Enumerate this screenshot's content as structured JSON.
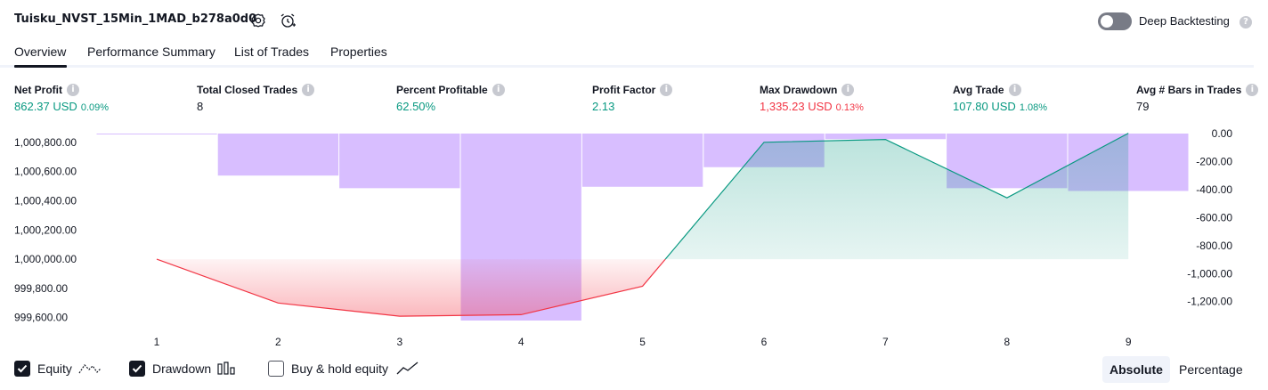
{
  "header": {
    "strategy_name": "Tuisku_NVST_15Min_1MAD_b278a0d0",
    "settings_icon": "gear-icon",
    "alert_icon": "add-alarm-icon",
    "deep_backtesting_label": "Deep Backtesting",
    "deep_backtesting_enabled": false,
    "help_icon": "question-icon"
  },
  "tabs": [
    {
      "label": "Overview",
      "active": true
    },
    {
      "label": "Performance Summary",
      "active": false
    },
    {
      "label": "List of Trades",
      "active": false
    },
    {
      "label": "Properties",
      "active": false
    }
  ],
  "metrics": [
    {
      "label": "Net Profit",
      "value": "862.37 USD",
      "percent": "0.09%",
      "tone": "green"
    },
    {
      "label": "Total Closed Trades",
      "value": "8",
      "percent": "",
      "tone": "dark"
    },
    {
      "label": "Percent Profitable",
      "value": "62.50%",
      "percent": "",
      "tone": "green"
    },
    {
      "label": "Profit Factor",
      "value": "2.13",
      "percent": "",
      "tone": "green"
    },
    {
      "label": "Max Drawdown",
      "value": "1,335.23 USD",
      "percent": "0.13%",
      "tone": "red"
    },
    {
      "label": "Avg Trade",
      "value": "107.80 USD",
      "percent": "1.08%",
      "tone": "green"
    },
    {
      "label": "Avg # Bars in Trades",
      "value": "79",
      "percent": "",
      "tone": "dark"
    }
  ],
  "chart_data": {
    "type": "line",
    "x": [
      1,
      2,
      3,
      4,
      5,
      6,
      7,
      8,
      9
    ],
    "x_tick_labels": [
      "1",
      "2",
      "3",
      "4",
      "5",
      "6",
      "7",
      "8",
      "9"
    ],
    "series": [
      {
        "name": "Equity",
        "values": [
          1000000,
          999700,
          999610,
          999620,
          999815,
          1000800,
          1000820,
          1000420,
          1000862.37
        ]
      },
      {
        "name": "Drawdown",
        "values": [
          -5,
          -300,
          -390,
          -1335.23,
          -380,
          -240,
          -40,
          -390,
          -410
        ]
      }
    ],
    "left_axis": {
      "ticks": [
        "1,000,800.00",
        "1,000,600.00",
        "1,000,400.00",
        "1,000,200.00",
        "1,000,000.00",
        "999,800.00",
        "999,600.00"
      ],
      "ylim": [
        999580,
        1000860
      ]
    },
    "right_axis": {
      "ticks": [
        "0.00",
        "-200.00",
        "-400.00",
        "-600.00",
        "-800.00",
        "-1,000.00",
        "-1,200.00"
      ],
      "ylim": [
        -1335.23,
        0
      ]
    },
    "baseline": 1000000,
    "colors": {
      "profit": "#089981",
      "loss": "#f23645",
      "drawdown": "#d1b3ff",
      "profit_fill": "#cdeee4",
      "loss_fill": "#fbc8cc"
    }
  },
  "footer": {
    "legend": [
      {
        "label": "Equity",
        "checked": true,
        "icon": "equity-line-icon"
      },
      {
        "label": "Drawdown",
        "checked": true,
        "icon": "drawdown-bars-icon"
      },
      {
        "label": "Buy & hold equity",
        "checked": false,
        "icon": "buy-hold-line-icon"
      }
    ],
    "modes": [
      {
        "label": "Absolute",
        "active": true
      },
      {
        "label": "Percentage",
        "active": false
      }
    ]
  }
}
